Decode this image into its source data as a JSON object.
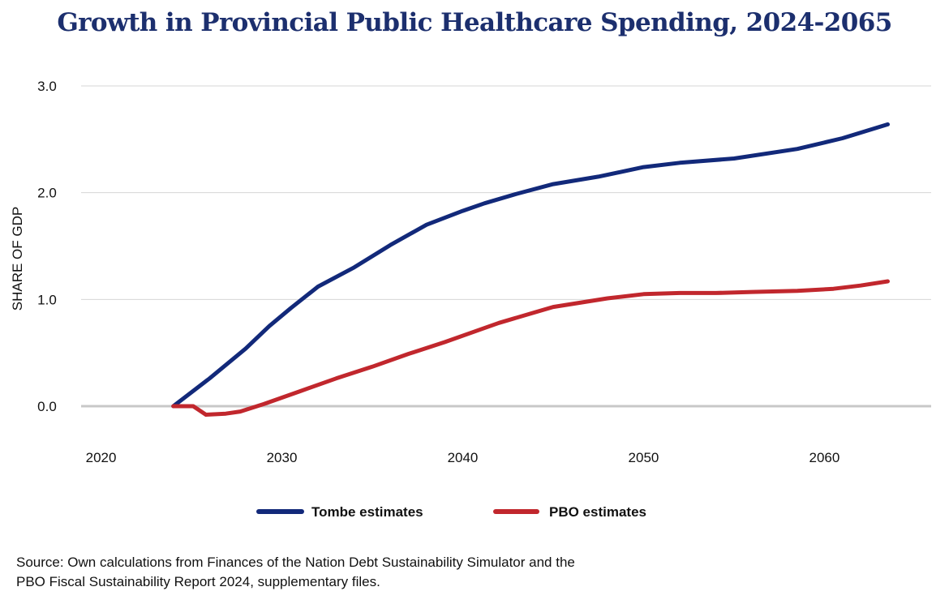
{
  "title": "Growth in Provincial Public Healthcare Spending, 2024-2065",
  "source": {
    "line1": "Source: Own calculations from Finances of the Nation Debt Sustainability Simulator and the",
    "line2": "PBO Fiscal Sustainability Report 2024, supplementary files."
  },
  "colors": {
    "tombe": "#12297a",
    "pbo": "#c1272d",
    "grid": "#d6d6d6",
    "zero": "#c8c8c8",
    "text": "#111111"
  },
  "chart_data": {
    "type": "line",
    "title": "Growth in Provincial Public Healthcare Spending, 2024-2065",
    "xlabel": "",
    "ylabel": "SHARE OF GDP",
    "xlim": [
      2018.9,
      2065.9
    ],
    "ylim": [
      -0.3,
      3.0
    ],
    "xticks": [
      2020,
      2030,
      2040,
      2050,
      2060
    ],
    "xtick_labels": [
      "2020",
      "2030",
      "2040",
      "2050",
      "2060"
    ],
    "yticks": [
      0,
      1,
      2,
      3
    ],
    "ytick_labels": [
      "0.0",
      "1.0",
      "2.0",
      "3.0"
    ],
    "grid": true,
    "legend": "bottom-center",
    "series": [
      {
        "name": "Tombe estimates",
        "color": "#12297a",
        "x": [
          2024,
          2026,
          2028,
          2029.3,
          2030.5,
          2032,
          2034,
          2036,
          2038,
          2040,
          2041.2,
          2043,
          2045,
          2047.5,
          2050,
          2052,
          2055,
          2058.5,
          2061,
          2063.5
        ],
        "y": [
          0.0,
          0.26,
          0.54,
          0.75,
          0.92,
          1.12,
          1.3,
          1.51,
          1.7,
          1.83,
          1.9,
          1.99,
          2.08,
          2.15,
          2.24,
          2.28,
          2.32,
          2.41,
          2.51,
          2.64
        ]
      },
      {
        "name": "PBO estimates",
        "color": "#c1272d",
        "x": [
          2024,
          2025.1,
          2025.8,
          2026.9,
          2027.7,
          2029,
          2031,
          2033,
          2035,
          2037,
          2039,
          2041,
          2042,
          2045,
          2048,
          2050,
          2052,
          2054,
          2056,
          2058.5,
          2060.5,
          2062,
          2063.5
        ],
        "y": [
          0.0,
          0.0,
          -0.08,
          -0.07,
          -0.05,
          0.02,
          0.14,
          0.26,
          0.37,
          0.49,
          0.6,
          0.72,
          0.78,
          0.93,
          1.01,
          1.05,
          1.06,
          1.06,
          1.07,
          1.08,
          1.1,
          1.13,
          1.17
        ]
      }
    ]
  }
}
